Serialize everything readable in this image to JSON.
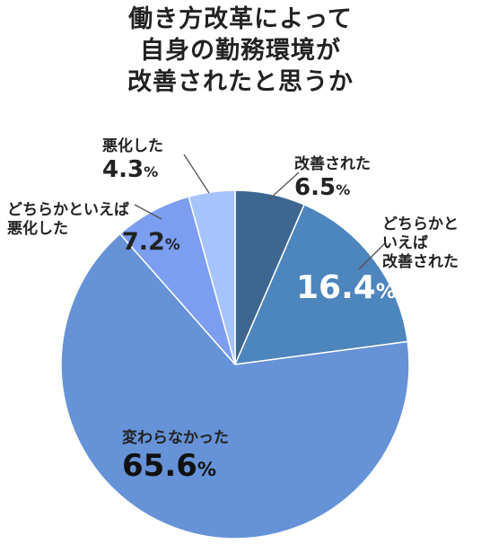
{
  "title_lines": [
    "働き方改革によって",
    "自身の勤務環境が",
    "改善されたと思うか"
  ],
  "colors": {
    "improved": "#3d6791",
    "somewhat_improved": "#4d85bd",
    "unchanged": "#6692d7",
    "somewhat_worse": "#7b9ef0",
    "worse": "#a6c3fb"
  },
  "chart_data": {
    "type": "pie",
    "title": "働き方改革によって自身の勤務環境が改善されたと思うか",
    "slices": [
      {
        "label": "改善された",
        "value": 6.5,
        "value_text": "6.5",
        "unit": "%"
      },
      {
        "label": "どちらかといえば改善された",
        "label_lines": [
          "どちらかと",
          "いえば",
          "改善された"
        ],
        "value": 16.4,
        "value_text": "16.4",
        "unit": "%"
      },
      {
        "label": "変わらなかった",
        "value": 65.6,
        "value_text": "65.6",
        "unit": "%"
      },
      {
        "label": "どちらかといえば悪化した",
        "label_lines": [
          "どちらかといえば",
          "悪化した"
        ],
        "value": 7.2,
        "value_text": "7.2",
        "unit": "%"
      },
      {
        "label": "悪化した",
        "value": 4.3,
        "value_text": "4.3",
        "unit": "%"
      }
    ]
  }
}
